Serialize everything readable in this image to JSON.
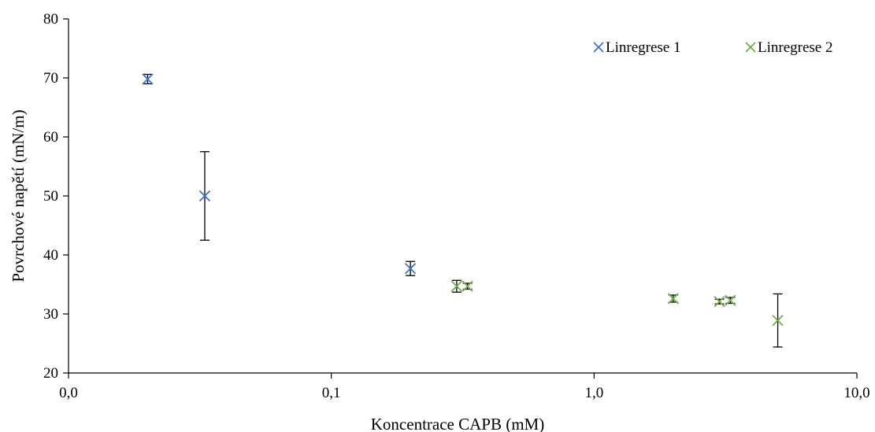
{
  "chart_data": {
    "type": "scatter",
    "title": "",
    "xlabel": "Koncentrace CAPB (mM)",
    "ylabel": "Povrchové napětí (mN/m)",
    "x_scale": "log",
    "xlim": [
      0.01,
      10
    ],
    "ylim": [
      20,
      80
    ],
    "x_ticks": [
      0.01,
      0.1,
      1,
      10
    ],
    "x_tick_labels": [
      "0,0",
      "0,1",
      "1,0",
      "10,0"
    ],
    "y_ticks": [
      20,
      30,
      40,
      50,
      60,
      70,
      80
    ],
    "y_tick_labels": [
      "20",
      "30",
      "40",
      "50",
      "60",
      "70",
      "80"
    ],
    "grid": false,
    "legend_position": "top-right",
    "series": [
      {
        "name": "Linregrese 1",
        "color": "#4472C4",
        "marker": "x",
        "points": [
          {
            "x": 0.02,
            "y": 69.8,
            "err": 0.8
          },
          {
            "x": 0.033,
            "y": 50.0,
            "err": 7.5
          },
          {
            "x": 0.2,
            "y": 37.7,
            "err": 1.2
          }
        ]
      },
      {
        "name": "Linregrese 2",
        "color": "#70AD47",
        "marker": "x",
        "points": [
          {
            "x": 0.3,
            "y": 34.7,
            "err": 1.0
          },
          {
            "x": 0.33,
            "y": 34.7,
            "err": 0.5
          },
          {
            "x": 2.0,
            "y": 32.6,
            "err": 0.6
          },
          {
            "x": 3.0,
            "y": 32.1,
            "err": 0.4
          },
          {
            "x": 3.3,
            "y": 32.3,
            "err": 0.5
          },
          {
            "x": 5.0,
            "y": 28.9,
            "err": 4.5
          }
        ]
      }
    ]
  }
}
